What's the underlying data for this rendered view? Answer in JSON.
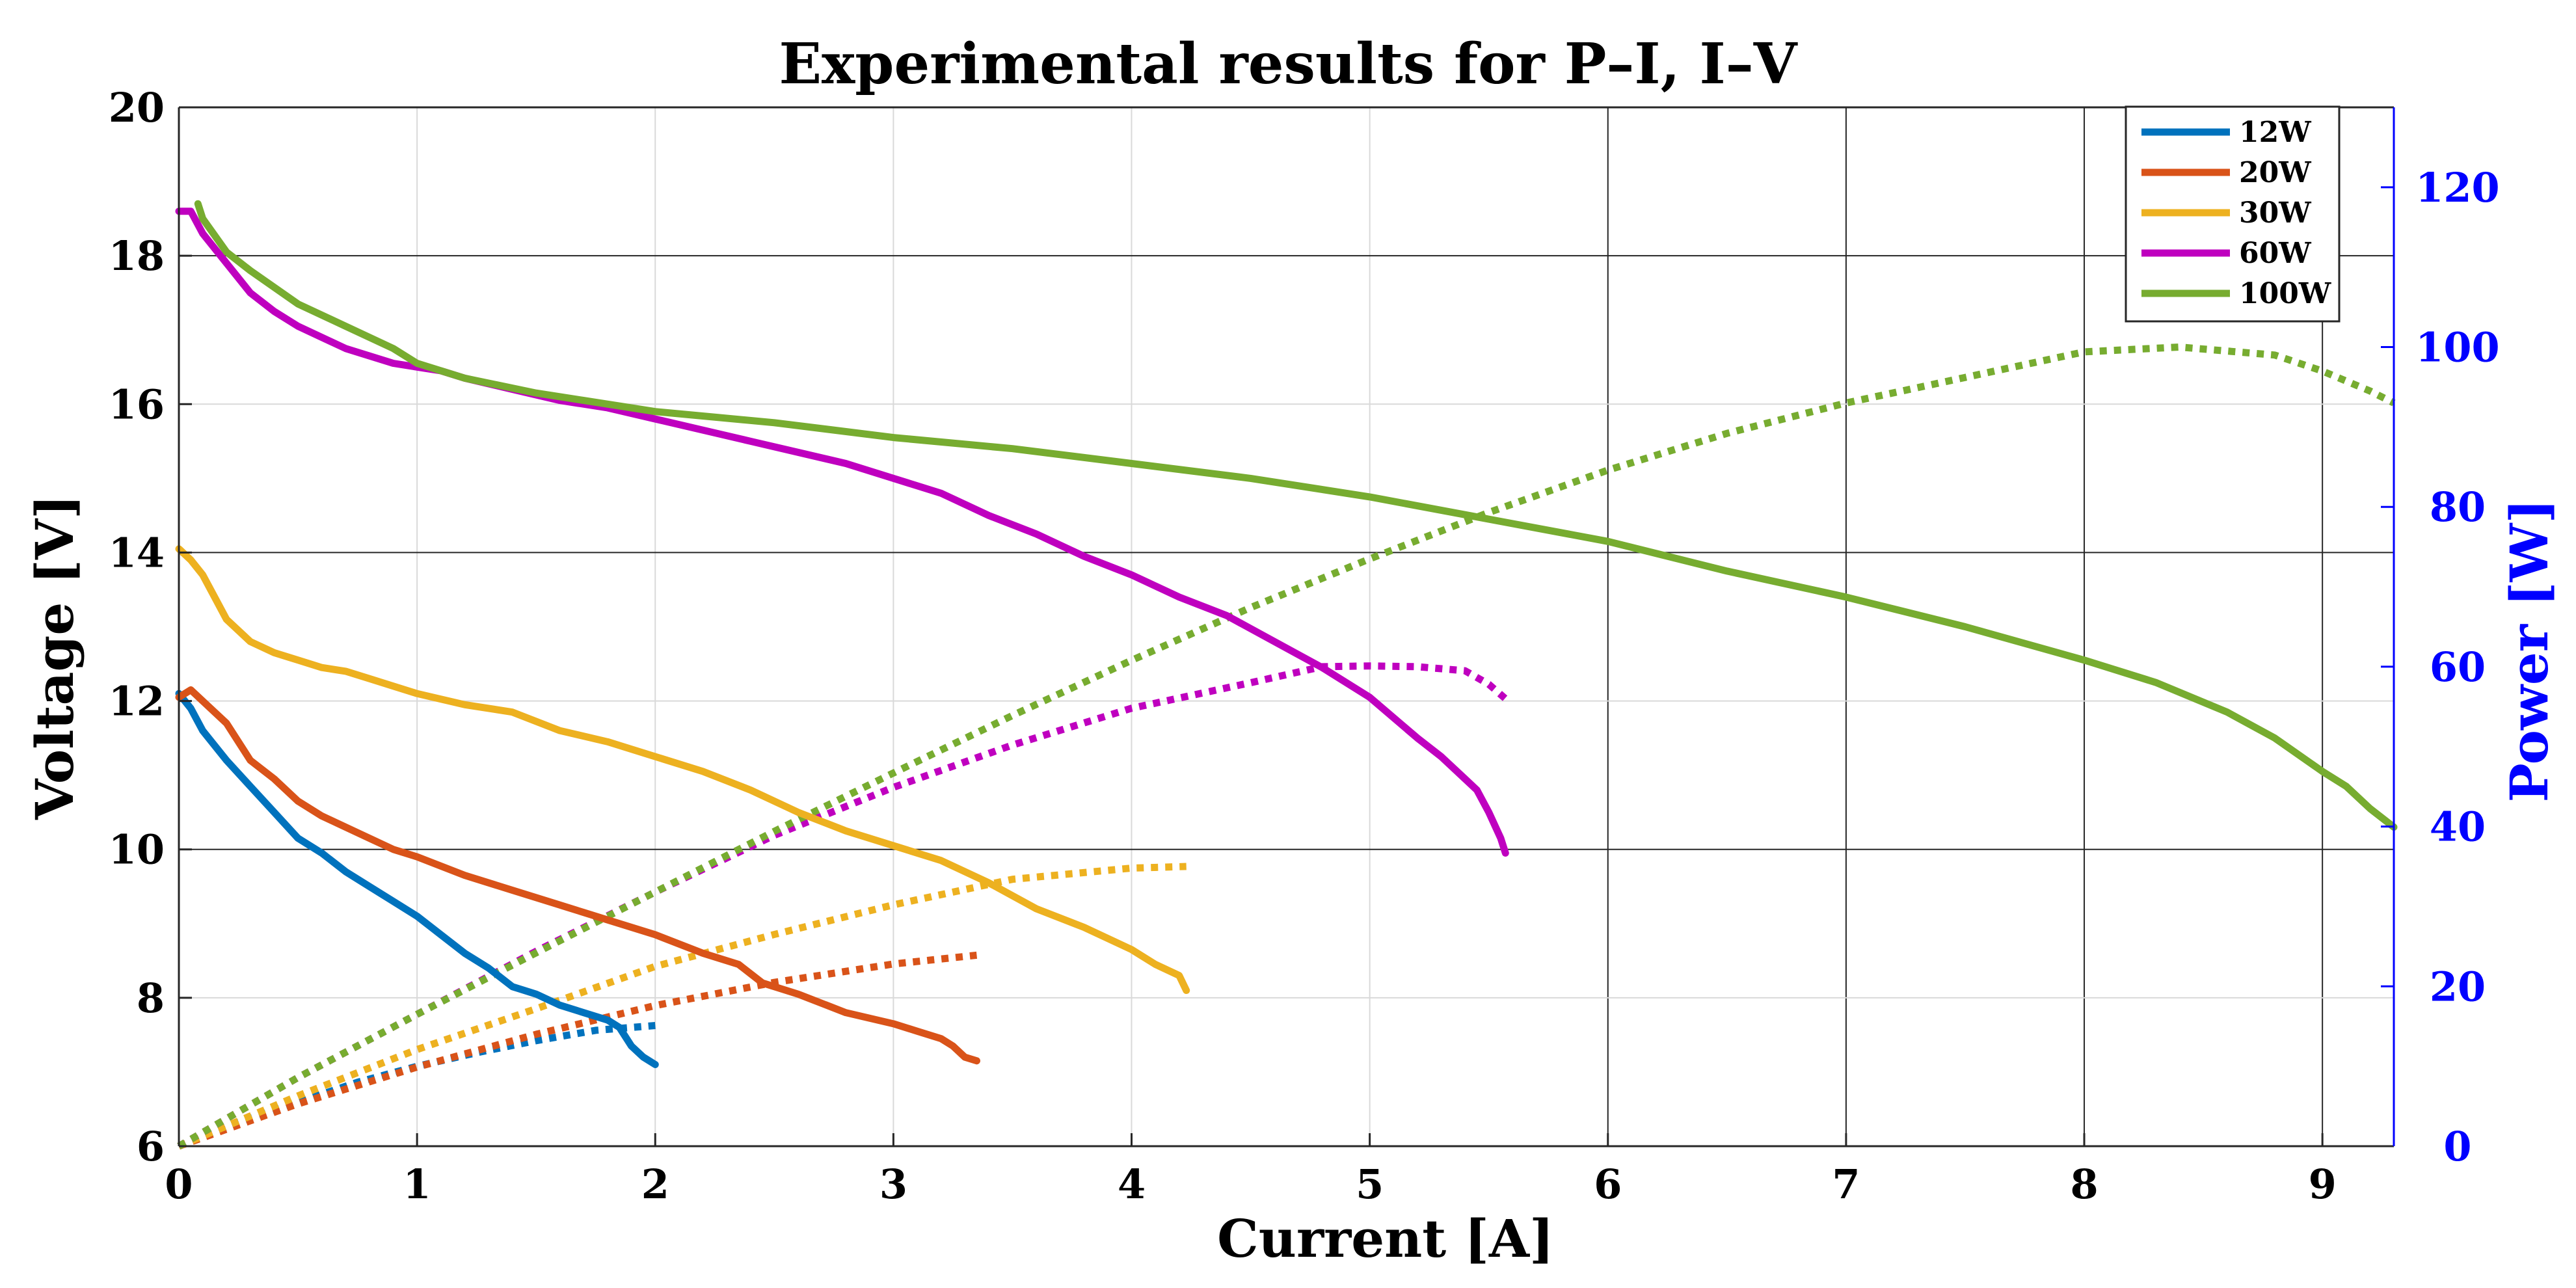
{
  "chart_data": {
    "type": "line",
    "title": "Experimental results for P–I, I–V",
    "xlabel": "Current [A]",
    "ylabel": "Voltage [V]",
    "y2label": "Power [W]",
    "xlim": [
      0,
      9.3
    ],
    "ylim": [
      6,
      20
    ],
    "y2lim": [
      0,
      130
    ],
    "xticks": [
      0,
      1,
      2,
      3,
      4,
      5,
      6,
      7,
      8,
      9
    ],
    "yticks": [
      6,
      8,
      10,
      12,
      14,
      16,
      18,
      20
    ],
    "y2ticks": [
      0,
      20,
      40,
      60,
      80,
      100,
      120
    ],
    "grid": true,
    "legend_position": "top-right",
    "line_styles": {
      "voltage": "solid",
      "power": "dotted"
    },
    "colors": {
      "axis_right": "#0000ff"
    },
    "series": [
      {
        "name": "12W",
        "color": "#0072BD",
        "voltage": {
          "x": [
            0.0,
            0.05,
            0.1,
            0.2,
            0.3,
            0.4,
            0.5,
            0.6,
            0.7,
            0.8,
            0.9,
            1.0,
            1.1,
            1.2,
            1.3,
            1.4,
            1.5,
            1.6,
            1.7,
            1.8,
            1.85,
            1.9,
            1.95,
            2.0
          ],
          "y": [
            12.1,
            11.9,
            11.6,
            11.2,
            10.85,
            10.5,
            10.15,
            9.95,
            9.7,
            9.5,
            9.3,
            9.1,
            8.85,
            8.6,
            8.4,
            8.15,
            8.05,
            7.9,
            7.8,
            7.7,
            7.6,
            7.35,
            7.2,
            7.1
          ]
        },
        "power": {
          "x": [
            0.0,
            0.25,
            0.5,
            0.75,
            1.0,
            1.25,
            1.5,
            1.75,
            2.0
          ],
          "y": [
            0.0,
            3.0,
            5.5,
            8.0,
            10.0,
            11.7,
            13.2,
            14.5,
            15.1
          ]
        }
      },
      {
        "name": "20W",
        "color": "#D95319",
        "voltage": {
          "x": [
            0.0,
            0.05,
            0.1,
            0.2,
            0.3,
            0.4,
            0.5,
            0.6,
            0.7,
            0.8,
            0.9,
            1.0,
            1.2,
            1.4,
            1.6,
            1.8,
            2.0,
            2.2,
            2.35,
            2.45,
            2.6,
            2.8,
            3.0,
            3.1,
            3.2,
            3.25,
            3.3,
            3.35
          ],
          "y": [
            12.05,
            12.15,
            12.0,
            11.7,
            11.2,
            10.95,
            10.65,
            10.45,
            10.3,
            10.15,
            10.0,
            9.9,
            9.65,
            9.45,
            9.25,
            9.05,
            8.85,
            8.6,
            8.45,
            8.2,
            8.05,
            7.8,
            7.65,
            7.55,
            7.45,
            7.35,
            7.2,
            7.15
          ]
        },
        "power": {
          "x": [
            0.0,
            0.5,
            1.0,
            1.5,
            2.0,
            2.5,
            3.0,
            3.35
          ],
          "y": [
            0.0,
            5.3,
            9.9,
            14.0,
            17.6,
            20.5,
            22.8,
            23.9
          ]
        }
      },
      {
        "name": "30W",
        "color": "#EDB120",
        "voltage": {
          "x": [
            0.0,
            0.05,
            0.1,
            0.15,
            0.2,
            0.3,
            0.4,
            0.5,
            0.6,
            0.7,
            0.8,
            0.9,
            1.0,
            1.2,
            1.4,
            1.6,
            1.8,
            2.0,
            2.2,
            2.4,
            2.6,
            2.8,
            3.0,
            3.2,
            3.4,
            3.6,
            3.8,
            4.0,
            4.1,
            4.2,
            4.23
          ],
          "y": [
            14.05,
            13.9,
            13.7,
            13.4,
            13.1,
            12.8,
            12.65,
            12.55,
            12.45,
            12.4,
            12.3,
            12.2,
            12.1,
            11.95,
            11.85,
            11.6,
            11.45,
            11.25,
            11.05,
            10.8,
            10.5,
            10.25,
            10.05,
            9.85,
            9.55,
            9.2,
            8.95,
            8.65,
            8.45,
            8.3,
            8.1
          ]
        },
        "power": {
          "x": [
            0.0,
            0.5,
            1.0,
            1.5,
            2.0,
            2.5,
            3.0,
            3.5,
            4.0,
            4.23
          ],
          "y": [
            0.0,
            6.3,
            12.1,
            17.2,
            22.5,
            26.5,
            30.2,
            33.4,
            34.8,
            35.0
          ]
        }
      },
      {
        "name": "60W",
        "color": "#BF00BF",
        "voltage": {
          "x": [
            0.0,
            0.05,
            0.1,
            0.2,
            0.3,
            0.4,
            0.5,
            0.6,
            0.7,
            0.8,
            0.9,
            1.0,
            1.1,
            1.2,
            1.4,
            1.6,
            1.8,
            2.0,
            2.2,
            2.4,
            2.6,
            2.8,
            3.0,
            3.2,
            3.4,
            3.6,
            3.8,
            4.0,
            4.2,
            4.4,
            4.6,
            4.8,
            5.0,
            5.2,
            5.3,
            5.4,
            5.45,
            5.5,
            5.55,
            5.57
          ],
          "y": [
            18.6,
            18.6,
            18.3,
            17.9,
            17.5,
            17.25,
            17.05,
            16.9,
            16.75,
            16.65,
            16.55,
            16.5,
            16.45,
            16.35,
            16.2,
            16.05,
            15.95,
            15.8,
            15.65,
            15.5,
            15.35,
            15.2,
            15.0,
            14.8,
            14.5,
            14.25,
            13.95,
            13.7,
            13.4,
            13.15,
            12.8,
            12.45,
            12.05,
            11.5,
            11.25,
            10.95,
            10.8,
            10.5,
            10.15,
            9.95
          ]
        },
        "power": {
          "x": [
            0.0,
            0.5,
            1.0,
            1.5,
            2.0,
            2.5,
            3.0,
            3.5,
            4.0,
            4.5,
            4.8,
            5.0,
            5.2,
            5.4,
            5.5,
            5.57
          ],
          "y": [
            0.0,
            8.6,
            16.5,
            24.4,
            31.8,
            38.9,
            44.9,
            50.2,
            54.8,
            58.0,
            60.0,
            60.1,
            60.0,
            59.5,
            57.8,
            56.0
          ]
        }
      },
      {
        "name": "100W",
        "color": "#77AC30",
        "voltage": {
          "x": [
            0.08,
            0.1,
            0.2,
            0.3,
            0.5,
            0.7,
            0.9,
            1.0,
            1.2,
            1.5,
            1.7,
            2.0,
            2.5,
            3.0,
            3.5,
            4.0,
            4.5,
            5.0,
            5.5,
            6.0,
            6.5,
            7.0,
            7.5,
            8.0,
            8.3,
            8.6,
            8.8,
            9.0,
            9.1,
            9.2,
            9.3
          ],
          "y": [
            18.7,
            18.5,
            18.05,
            17.8,
            17.35,
            17.05,
            16.75,
            16.55,
            16.35,
            16.15,
            16.05,
            15.9,
            15.75,
            15.55,
            15.4,
            15.2,
            15.0,
            14.75,
            14.45,
            14.15,
            13.75,
            13.4,
            13.0,
            12.55,
            12.25,
            11.85,
            11.5,
            11.05,
            10.85,
            10.55,
            10.3
          ]
        },
        "power": {
          "x": [
            0.0,
            0.5,
            1.0,
            1.5,
            2.0,
            2.5,
            3.0,
            3.5,
            4.0,
            4.5,
            5.0,
            5.5,
            6.0,
            6.5,
            7.0,
            7.5,
            8.0,
            8.4,
            8.8,
            9.0,
            9.2,
            9.3
          ],
          "y": [
            0.0,
            8.6,
            16.5,
            24.2,
            31.8,
            39.4,
            46.7,
            53.9,
            60.8,
            67.4,
            73.5,
            79.3,
            84.6,
            89.2,
            93.0,
            96.2,
            99.4,
            100.0,
            99.0,
            97.0,
            94.5,
            93.0
          ]
        }
      }
    ]
  }
}
